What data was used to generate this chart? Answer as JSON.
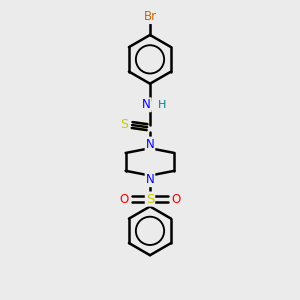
{
  "bg_color": "#ebebeb",
  "line_color": "#000000",
  "bond_width": 1.8,
  "atom_colors": {
    "Br": "#cc6600",
    "N": "#0000ff",
    "S_thio": "#cccc00",
    "S_sulfonyl": "#cccc00",
    "O": "#ff0000",
    "H": "#008080",
    "C": "#000000"
  },
  "scale": 10
}
